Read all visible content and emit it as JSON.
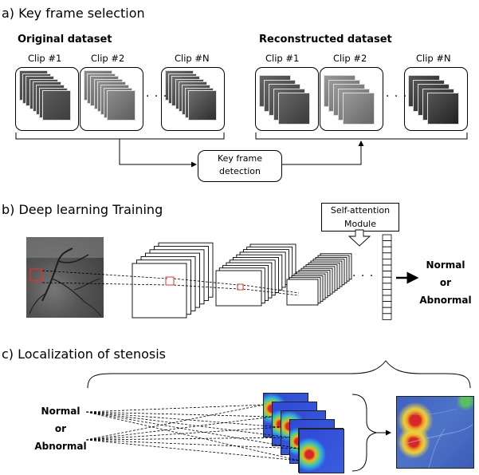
{
  "section_a": {
    "title": "a) Key frame selection",
    "original": {
      "title": "Original dataset",
      "clips": [
        "Clip #1",
        "Clip #2",
        "Clip #N"
      ]
    },
    "reconstructed": {
      "title": "Reconstructed dataset",
      "clips": [
        "Clip #1",
        "Clip #2",
        "Clip #N"
      ]
    },
    "ellipsis": "· · ·",
    "process": {
      "line1": "Key frame",
      "line2": "detection"
    }
  },
  "section_b": {
    "title": "b) Deep learning Training",
    "attention": {
      "line1": "Self-attention",
      "line2": "Module"
    },
    "ellipsis": "· · ·",
    "output": {
      "line1": "Normal",
      "line2": "or",
      "line3": "Abnormal"
    }
  },
  "section_c": {
    "title": "c) Localization of stenosis",
    "input": {
      "line1": "Normal",
      "line2": "or",
      "line3": "Abnormal"
    }
  },
  "colors": {
    "roi_marker": "#e8302c",
    "heatmap_cold": "#2f49d6",
    "heatmap_hot": "#d8262a",
    "line": "#000000"
  },
  "icons": [
    "angiogram-frame-stack",
    "heatmap-stack",
    "overlay-image",
    "down-arrow",
    "right-arrow",
    "curly-brace"
  ]
}
